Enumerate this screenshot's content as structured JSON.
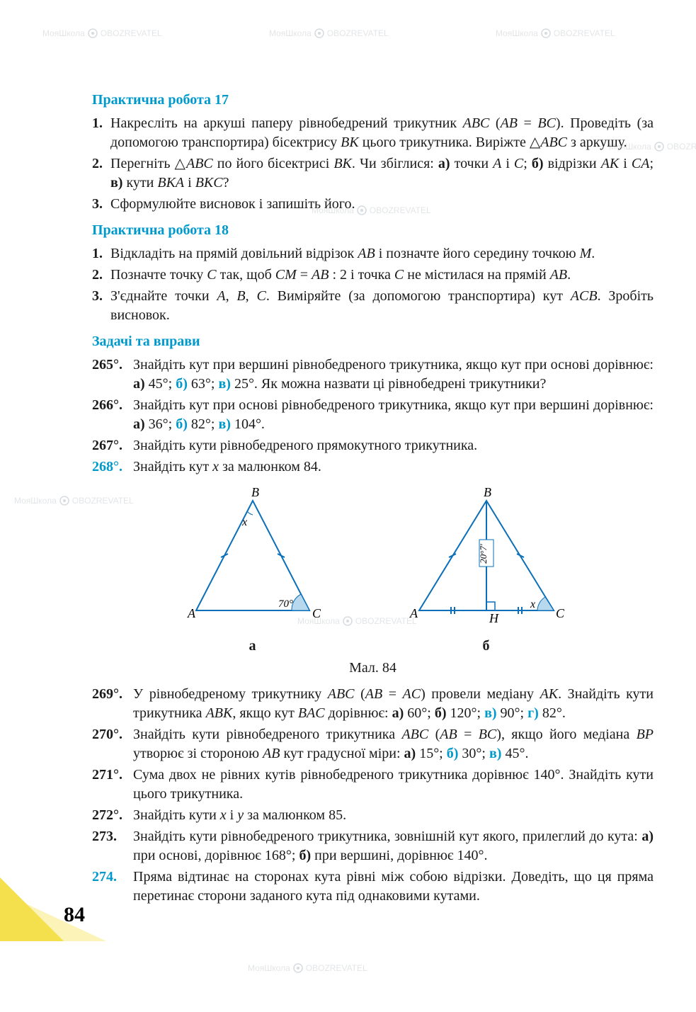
{
  "page_number": "84",
  "watermark": {
    "brand": "МояШкола",
    "sub": "OBOZREVATEL"
  },
  "sections": {
    "pr17": {
      "title": "Практична робота 17",
      "items": [
        {
          "n": "1.",
          "text": "Накресліть на аркуші паперу рівнобедрений трикутник <i>ABC</i> (<i>AB</i> = <i>BC</i>). Проведіть (за допомогою транспортира) бісектрису <i>BK</i> цього трикутника. Виріжте △<i>ABC</i> з аркушу."
        },
        {
          "n": "2.",
          "text": "Перегніть △<i>ABC</i> по його бісектрисі <i>BK</i>. Чи збіглися: <b>а)</b> точки <i>A</i> і <i>C</i>; <b>б)</b> відрізки <i>AK</i> і <i>CA</i>; <b>в)</b> кути <i>BKA</i> і <i>BKC</i>?"
        },
        {
          "n": "3.",
          "text": "Сформулюйте висновок і запишіть його."
        }
      ]
    },
    "pr18": {
      "title": "Практична робота 18",
      "items": [
        {
          "n": "1.",
          "text": "Відкладіть на прямій довільний відрізок <i>AB</i> і позначте його середину точкою <i>M</i>."
        },
        {
          "n": "2.",
          "text": "Позначте точку <i>C</i> так, щоб <i>CM</i> = <i>AB</i> : 2 і точка <i>C</i> не містилася на прямій <i>AB</i>."
        },
        {
          "n": "3.",
          "text": "З'єднайте точки <i>A</i>, <i>B</i>, <i>C</i>. Виміряйте (за допомогою транспортира) кут <i>ACB</i>. Зробіть висновок."
        }
      ]
    },
    "ex": {
      "title": "Задачі та вправи",
      "items": [
        {
          "n": "265°.",
          "text": "Знайдіть кут при вершині рівнобедреного трикутника, якщо кут при основі дорівнює: <b>а)</b> 45°; <span class='blue'>б)</span> 63°; <span class='blue'>в)</span> 25°. Як можна назвати ці рівнобедрені трикутники?"
        },
        {
          "n": "266°.",
          "text": "Знайдіть кут при основі рівнобедреного трикутника, якщо кут при вершині дорівнює: <b>а)</b> 36°; <span class='blue'>б)</span> 82°; <span class='blue'>в)</span> 104°."
        },
        {
          "n": "267°.",
          "text": "Знайдіть кути рівнобедреного прямокутного трикутника."
        },
        {
          "n": "268°.",
          "blue_num": true,
          "text": "Знайдіть кут <i>x</i> за малюнком 84."
        }
      ],
      "items2": [
        {
          "n": "269°.",
          "text": "У рівнобедреному трикутнику <i>ABC</i> (<i>AB</i> = <i>AC</i>) провели медіану <i>AK</i>. Знайдіть кути трикутника <i>ABK</i>, якщо кут <i>BAC</i> дорівнює: <b>а)</b> 60°; <b>б)</b> 120°; <span class='blue'>в)</span> 90°; <span class='blue'>г)</span> 82°."
        },
        {
          "n": "270°.",
          "text": "Знайдіть кути рівнобедреного трикутника <i>ABC</i> (<i>AB</i> = <i>BC</i>), якщо його медіана <i>BP</i> утворює зі стороною <i>AB</i> кут градусної міри: <b>а)</b> 15°; <span class='blue'>б)</span> 30°; <span class='blue'>в)</span> 45°."
        },
        {
          "n": "271°.",
          "text": "Сума двох не рівних кутів рівнобедреного трикутника дорівнює 140°. Знайдіть кути цього трикутника."
        },
        {
          "n": "272°.",
          "text": "Знайдіть кути <i>x</i> і <i>y</i> за малюнком 85."
        },
        {
          "n": "273.",
          "text": "Знайдіть кути рівнобедреного трикутника, зовнішній кут якого, прилеглий до кута: <b>а)</b> при основі, дорівнює 168°; <b>б)</b> при вершині, дорівнює 140°."
        },
        {
          "n": "274.",
          "blue_num": true,
          "text": "Пряма відтинає на сторонах кута рівні між собою відрізки. Доведіть, що ця пряма перетинає сторони заданого кута під однаковими кутами."
        }
      ]
    }
  },
  "figure84": {
    "caption": "Мал. 84",
    "sub_a": "а",
    "sub_b": "б",
    "a": {
      "B": "B",
      "A": "A",
      "C": "C",
      "x": "x",
      "angle": "70°",
      "stroke": "#0a6fb8",
      "fill_arc": "#b8d8ee"
    },
    "b": {
      "B": "B",
      "A": "A",
      "C": "C",
      "H": "H",
      "x": "x",
      "len": "20°7'",
      "stroke": "#0a6fb8",
      "fill_arc": "#b8d8ee"
    }
  },
  "colors": {
    "heading": "#0099cc",
    "text": "#1a1a1a",
    "watermark": "#d0d4d8",
    "corner": "#f4e04d",
    "stroke": "#0a6fb8"
  }
}
